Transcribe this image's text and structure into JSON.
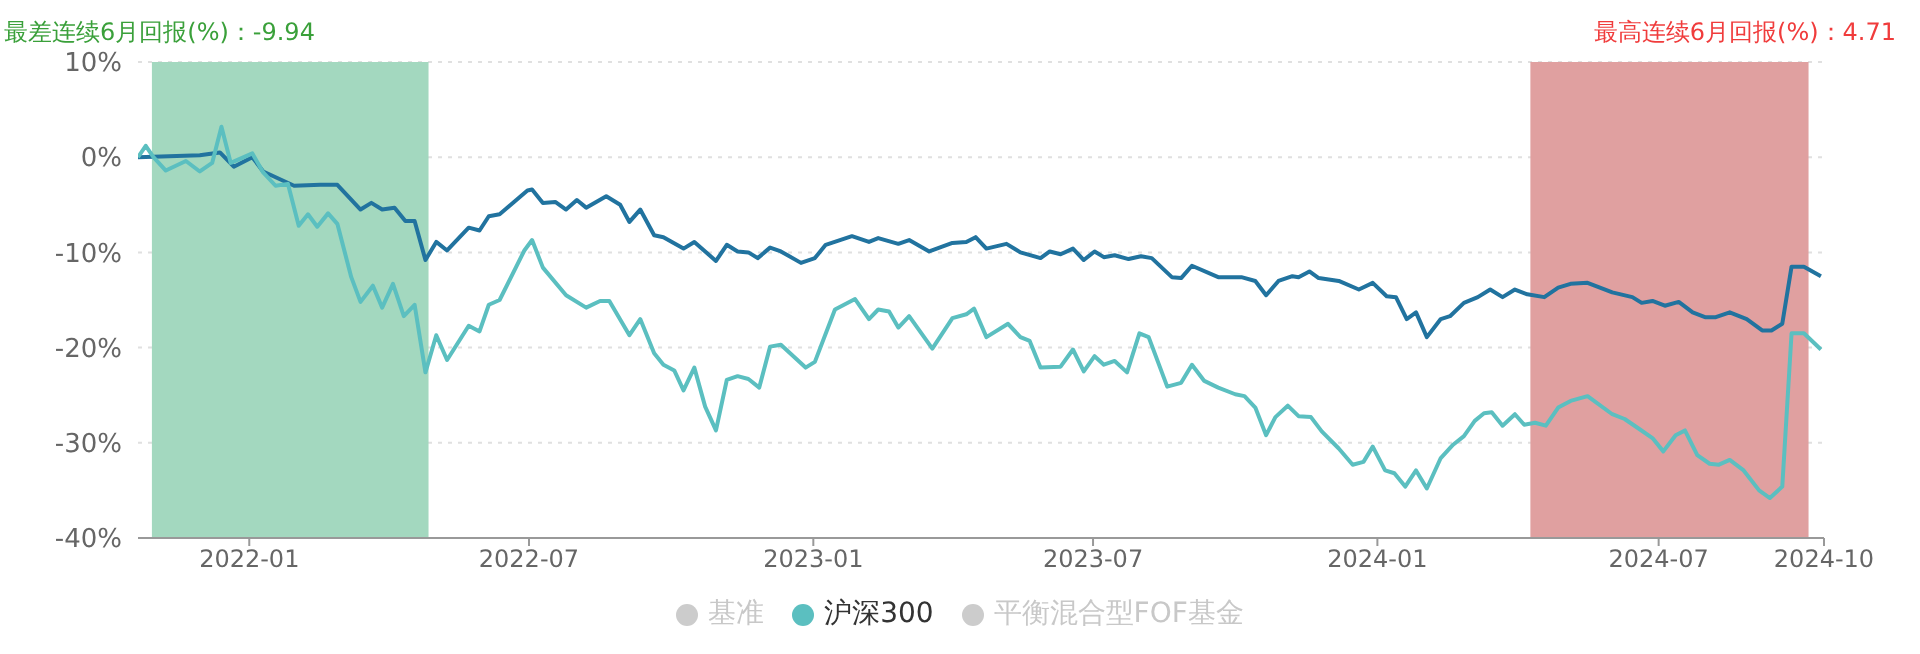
{
  "chart_data": {
    "type": "line",
    "annotations": [
      "最差连续6月回报(%)：-9.94",
      "最高连续6月回报(%)：4.71"
    ],
    "xlim": [
      "2021-10-21",
      "2024-10-16"
    ],
    "xticks": [
      {
        "value": "2022-01-01",
        "label": "2022-01"
      },
      {
        "value": "2022-07-01",
        "label": "2022-07"
      },
      {
        "value": "2023-01-01",
        "label": "2023-01"
      },
      {
        "value": "2023-07-01",
        "label": "2023-07"
      },
      {
        "value": "2024-01-01",
        "label": "2024-01"
      },
      {
        "value": "2024-07-01",
        "label": "2024-07"
      },
      {
        "value": "2024-10-16",
        "label": "2024-10"
      }
    ],
    "ylim": [
      -40,
      10
    ],
    "yticks": [
      {
        "value": -40,
        "label": "-40%"
      },
      {
        "value": -30,
        "label": "-30%"
      },
      {
        "value": -20,
        "label": "-20%"
      },
      {
        "value": -10,
        "label": "-10%"
      },
      {
        "value": 0,
        "label": "0%"
      },
      {
        "value": 10,
        "label": "10%"
      }
    ],
    "grid": "y",
    "legend": "bottom",
    "marker": "none",
    "line_style": "solid",
    "bands": [
      {
        "axis": "x",
        "from": "2021-10-30",
        "to": "2022-04-27",
        "color": "#a3d8bf"
      },
      {
        "axis": "x",
        "from": "2024-04-09",
        "to": "2024-10-06",
        "color": "#e0a0a0"
      }
    ],
    "series": [
      {
        "color": "#21739f",
        "x": [
          "2021-10-21",
          "2021-11-30",
          "2021-12-13",
          "2021-12-22",
          "2022-01-03",
          "2022-01-10",
          "2022-01-30",
          "2022-02-16",
          "2022-02-27",
          "2022-03-14",
          "2022-03-21",
          "2022-03-28",
          "2022-04-05",
          "2022-04-12",
          "2022-04-18",
          "2022-04-25",
          "2022-05-02",
          "2022-05-09",
          "2022-05-23",
          "2022-05-30",
          "2022-06-05",
          "2022-06-12",
          "2022-06-30",
          "2022-07-03",
          "2022-07-10",
          "2022-07-18",
          "2022-07-25",
          "2022-08-01",
          "2022-08-07",
          "2022-08-20",
          "2022-08-29",
          "2022-09-04",
          "2022-09-11",
          "2022-09-20",
          "2022-09-26",
          "2022-10-09",
          "2022-10-16",
          "2022-10-30",
          "2022-11-06",
          "2022-11-13",
          "2022-11-20",
          "2022-11-26",
          "2022-12-04",
          "2022-12-11",
          "2022-12-24",
          "2023-01-02",
          "2023-01-09",
          "2023-01-26",
          "2023-02-06",
          "2023-02-12",
          "2023-02-25",
          "2023-03-04",
          "2023-03-17",
          "2023-04-01",
          "2023-04-10",
          "2023-04-16",
          "2023-04-23",
          "2023-05-06",
          "2023-05-15",
          "2023-05-28",
          "2023-06-03",
          "2023-06-10",
          "2023-06-18",
          "2023-06-25",
          "2023-07-02",
          "2023-07-08",
          "2023-07-15",
          "2023-07-24",
          "2023-08-01",
          "2023-08-08",
          "2023-08-21",
          "2023-08-27",
          "2023-09-03",
          "2023-09-20",
          "2023-10-05",
          "2023-10-14",
          "2023-10-21",
          "2023-10-29",
          "2023-11-07",
          "2023-11-11",
          "2023-11-18",
          "2023-11-24",
          "2023-12-07",
          "2023-12-20",
          "2023-12-29",
          "2024-01-07",
          "2024-01-13",
          "2024-01-20",
          "2024-01-26",
          "2024-02-02",
          "2024-02-11",
          "2024-02-17",
          "2024-02-26",
          "2024-03-06",
          "2024-03-14",
          "2024-03-22",
          "2024-03-30",
          "2024-04-07",
          "2024-04-18",
          "2024-04-27",
          "2024-05-05",
          "2024-05-16",
          "2024-06-01",
          "2024-06-14",
          "2024-06-20",
          "2024-06-27",
          "2024-07-05",
          "2024-07-14",
          "2024-07-23",
          "2024-07-31",
          "2024-08-07",
          "2024-08-16",
          "2024-08-27",
          "2024-09-06",
          "2024-09-12",
          "2024-09-19",
          "2024-09-25",
          "2024-10-03",
          "2024-10-14"
        ],
        "values": [
          0,
          0.2,
          0.5,
          -1.0,
          0,
          -1.5,
          -3.0,
          -2.9,
          -2.9,
          -5.5,
          -4.8,
          -5.5,
          -5.3,
          -6.7,
          -6.7,
          -10.8,
          -8.9,
          -9.8,
          -7.4,
          -7.7,
          -6.2,
          -6.0,
          -3.5,
          -3.4,
          -4.8,
          -4.7,
          -5.5,
          -4.5,
          -5.3,
          -4.1,
          -5.0,
          -6.8,
          -5.5,
          -8.2,
          -8.4,
          -9.6,
          -8.9,
          -10.9,
          -9.2,
          -9.9,
          -10.0,
          -10.6,
          -9.5,
          -9.9,
          -11.1,
          -10.6,
          -9.2,
          -8.3,
          -8.9,
          -8.5,
          -9.1,
          -8.7,
          -9.9,
          -9.0,
          -8.9,
          -8.4,
          -9.6,
          -9.1,
          -10.0,
          -10.6,
          -9.9,
          -10.2,
          -9.6,
          -10.8,
          -9.9,
          -10.5,
          -10.3,
          -10.7,
          -10.4,
          -10.6,
          -12.6,
          -12.7,
          -11.4,
          -12.6,
          -12.6,
          -13.0,
          -14.5,
          -13.0,
          -12.5,
          -12.6,
          -12.0,
          -12.7,
          -13.0,
          -13.9,
          -13.2,
          -14.6,
          -14.7,
          -17.0,
          -16.3,
          -18.9,
          -17.0,
          -16.7,
          -15.3,
          -14.7,
          -13.9,
          -14.7,
          -13.9,
          -14.4,
          -14.7,
          -13.7,
          -13.3,
          -13.2,
          -14.2,
          -14.7,
          -15.3,
          -15.1,
          -15.6,
          -15.2,
          -16.3,
          -16.8,
          -16.8,
          -16.3,
          -17.0,
          -18.2,
          -18.2,
          -17.5,
          -11.5,
          -11.5,
          -12.5
        ]
      },
      {
        "name": "基准",
        "color": "#cccccc"
      },
      {
        "name": "沪深300",
        "color": "#5bbfc0",
        "x": [
          "2021-10-21",
          "2021-10-26",
          "2021-10-31",
          "2021-11-08",
          "2021-11-21",
          "2021-11-30",
          "2021-12-08",
          "2021-12-14",
          "2021-12-20",
          "2022-01-03",
          "2022-01-10",
          "2022-01-18",
          "2022-01-26",
          "2022-02-02",
          "2022-02-08",
          "2022-02-14",
          "2022-02-21",
          "2022-02-27",
          "2022-03-08",
          "2022-03-14",
          "2022-03-22",
          "2022-03-28",
          "2022-04-04",
          "2022-04-11",
          "2022-04-18",
          "2022-04-25",
          "2022-05-02",
          "2022-05-09",
          "2022-05-23",
          "2022-05-30",
          "2022-06-05",
          "2022-06-12",
          "2022-06-28",
          "2022-07-03",
          "2022-07-10",
          "2022-07-25",
          "2022-08-07",
          "2022-08-16",
          "2022-08-22",
          "2022-09-04",
          "2022-09-11",
          "2022-09-20",
          "2022-09-26",
          "2022-10-03",
          "2022-10-09",
          "2022-10-16",
          "2022-10-23",
          "2022-10-30",
          "2022-11-06",
          "2022-11-13",
          "2022-11-20",
          "2022-11-27",
          "2022-12-04",
          "2022-12-11",
          "2022-12-27",
          "2023-01-02",
          "2023-01-15",
          "2023-01-28",
          "2023-02-06",
          "2023-02-12",
          "2023-02-19",
          "2023-02-25",
          "2023-03-04",
          "2023-03-19",
          "2023-04-01",
          "2023-04-10",
          "2023-04-15",
          "2023-04-23",
          "2023-05-07",
          "2023-05-15",
          "2023-05-21",
          "2023-05-28",
          "2023-06-10",
          "2023-06-18",
          "2023-06-25",
          "2023-07-02",
          "2023-07-08",
          "2023-07-15",
          "2023-07-23",
          "2023-07-31",
          "2023-08-06",
          "2023-08-18",
          "2023-08-27",
          "2023-09-03",
          "2023-09-11",
          "2023-09-20",
          "2023-10-01",
          "2023-10-07",
          "2023-10-14",
          "2023-10-21",
          "2023-10-27",
          "2023-11-04",
          "2023-11-11",
          "2023-11-19",
          "2023-11-26",
          "2023-12-07",
          "2023-12-16",
          "2023-12-23",
          "2023-12-29",
          "2024-01-06",
          "2024-01-12",
          "2024-01-19",
          "2024-01-26",
          "2024-02-02",
          "2024-02-11",
          "2024-02-19",
          "2024-02-26",
          "2024-03-04",
          "2024-03-10",
          "2024-03-15",
          "2024-03-22",
          "2024-03-30",
          "2024-04-05",
          "2024-04-12",
          "2024-04-19",
          "2024-04-27",
          "2024-05-05",
          "2024-05-16",
          "2024-06-01",
          "2024-06-09",
          "2024-06-18",
          "2024-06-27",
          "2024-07-04",
          "2024-07-12",
          "2024-07-18",
          "2024-07-26",
          "2024-08-03",
          "2024-08-09",
          "2024-08-16",
          "2024-08-25",
          "2024-09-04",
          "2024-09-11",
          "2024-09-19",
          "2024-09-25",
          "2024-10-03",
          "2024-10-14"
        ],
        "values": [
          0,
          1.2,
          0,
          -1.4,
          -0.4,
          -1.5,
          -0.6,
          3.2,
          -0.6,
          0.4,
          -1.6,
          -3.0,
          -2.8,
          -7.2,
          -6.0,
          -7.3,
          -5.9,
          -7.0,
          -12.6,
          -15.2,
          -13.5,
          -15.8,
          -13.3,
          -16.7,
          -15.5,
          -22.6,
          -18.7,
          -21.3,
          -17.7,
          -18.3,
          -15.5,
          -15.0,
          -9.8,
          -8.7,
          -11.6,
          -14.5,
          -15.8,
          -15.1,
          -15.1,
          -18.7,
          -17.0,
          -20.6,
          -21.8,
          -22.4,
          -24.5,
          -22.1,
          -26.2,
          -28.7,
          -23.4,
          -23.0,
          -23.3,
          -24.2,
          -19.9,
          -19.7,
          -22.1,
          -21.5,
          -16.0,
          -14.9,
          -17.0,
          -16.0,
          -16.2,
          -17.9,
          -16.7,
          -20.1,
          -16.9,
          -16.5,
          -15.9,
          -18.9,
          -17.5,
          -18.9,
          -19.3,
          -22.1,
          -22.0,
          -20.2,
          -22.5,
          -20.9,
          -21.8,
          -21.4,
          -22.6,
          -18.5,
          -18.9,
          -24.1,
          -23.7,
          -21.8,
          -23.5,
          -24.2,
          -24.9,
          -25.1,
          -26.3,
          -29.2,
          -27.3,
          -26.1,
          -27.2,
          -27.3,
          -28.8,
          -30.6,
          -32.3,
          -32.0,
          -30.4,
          -32.9,
          -33.2,
          -34.6,
          -32.9,
          -34.8,
          -31.6,
          -30.2,
          -29.3,
          -27.7,
          -26.9,
          -26.8,
          -28.2,
          -27.0,
          -28.1,
          -27.9,
          -28.2,
          -26.3,
          -25.6,
          -25.1,
          -27.0,
          -27.5,
          -28.5,
          -29.5,
          -30.9,
          -29.2,
          -28.7,
          -31.3,
          -32.2,
          -32.3,
          -31.8,
          -32.9,
          -35.0,
          -35.8,
          -34.6,
          -18.5,
          -18.5,
          -20.2
        ]
      },
      {
        "name": "平衡混合型FOF基金",
        "color": "#cccccc"
      }
    ]
  }
}
